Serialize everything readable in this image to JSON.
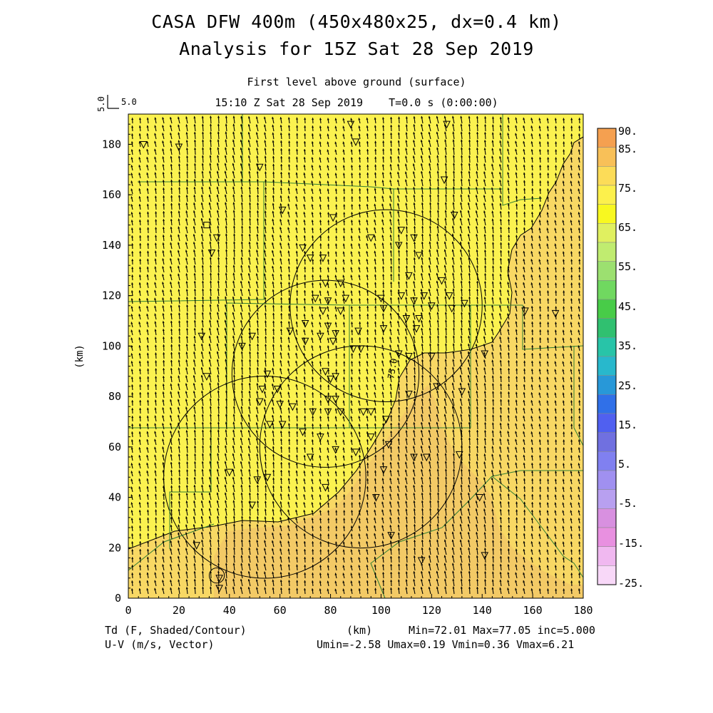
{
  "header": {
    "title_line1": "CASA DFW 400m (450x480x25, dx=0.4 km)",
    "title_line2": "Analysis for 15Z Sat 28 Sep 2019",
    "subtitle_line1": "First level above ground (surface)",
    "subtitle_line2": "15:10 Z Sat 28 Sep 2019    T=0.0 s (0:00:00)"
  },
  "vector_key": {
    "label_x": "5.0",
    "label_y": "5.0"
  },
  "footer": {
    "left_line1": "Td (F, Shaded/Contour)",
    "left_line2": "U-V (m/s, Vector)",
    "center": "(km)",
    "right_line1": "Min=72.01 Max=77.05 inc=5.000",
    "right_line2": "Umin=-2.58 Umax=0.19 Vmin=0.36 Vmax=6.21"
  },
  "chart_data": {
    "type": "heatmap",
    "title": "CASA DFW 400m (450x480x25, dx=0.4 km)",
    "variable": "Td (F, Shaded/Contour)",
    "xlabel": "",
    "ylabel": "(km)",
    "xlim": [
      0,
      180
    ],
    "ylim": [
      0,
      192
    ],
    "x_ticks": [
      "0",
      "20",
      "40",
      "60",
      "80",
      "100",
      "120",
      "140",
      "160",
      "180"
    ],
    "y_ticks": [
      "0",
      "20",
      "40",
      "60",
      "80",
      "100",
      "120",
      "140",
      "160",
      "180"
    ],
    "contour_levels": [
      {
        "value": 75.0,
        "label": "75.0"
      }
    ],
    "stats": {
      "min": 72.01,
      "max": 77.05,
      "inc": 5.0,
      "umin": -2.58,
      "umax": 0.19,
      "vmin": 0.36,
      "vmax": 6.21
    },
    "colorbar": {
      "labels": [
        "90.",
        "85.",
        "75.",
        "65.",
        "55.",
        "45.",
        "35.",
        "25.",
        "15.",
        "5.",
        "-5.",
        "-15.",
        "-25."
      ],
      "colors": [
        "#f5a050",
        "#f8c058",
        "#fcdc58",
        "#fcf04c",
        "#f8f820",
        "#e0f060",
        "#c0ec70",
        "#9ce070",
        "#70d860",
        "#48cc48",
        "#30c070",
        "#28c4a8",
        "#28b8cc",
        "#2898d8",
        "#3070e8",
        "#5060f0",
        "#7070e0",
        "#8080f0",
        "#a090f0",
        "#b8a0f0",
        "#d890e0",
        "#e890e0",
        "#f0b8f0",
        "#f8d8f8"
      ]
    },
    "domain_colors": {
      "below_75": "#fbf250",
      "above_75": "#f8d864",
      "above_76": "#f3ca66"
    },
    "radar_rings_center_km": [
      {
        "x": 102,
        "y": 116,
        "r": 38
      },
      {
        "x": 78,
        "y": 89,
        "r": 37
      },
      {
        "x": 54,
        "y": 48,
        "r": 40
      },
      {
        "x": 92,
        "y": 60,
        "r": 40
      },
      {
        "x": 35,
        "y": 9,
        "r": 3
      }
    ],
    "wind_vector": {
      "u_mean": -0.6,
      "v_mean": 4.0
    }
  }
}
